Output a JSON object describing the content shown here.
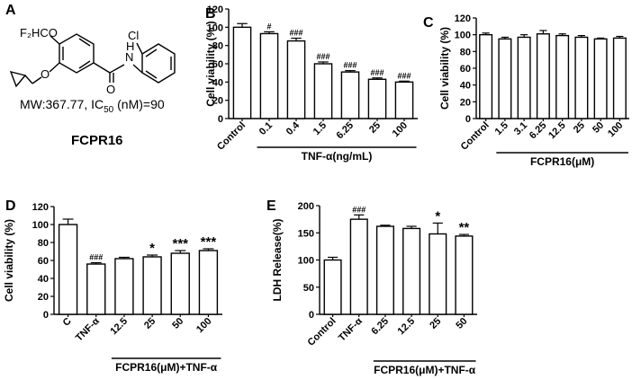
{
  "compound": {
    "panel_label": "A",
    "atom_labels": {
      "f2hco": "F₂HCO",
      "nh_n": "N",
      "nh_h": "H",
      "cl": "Cl",
      "o_ketone": "O",
      "o_ether": "O"
    },
    "mw_text": "MW:367.77, IC",
    "mw_sub": "50",
    "mw_tail": " (nM)=90",
    "name": "FCPR16"
  },
  "chart_data": [
    {
      "panel": "B",
      "type": "bar",
      "ylabel": "Cell viability (% )",
      "ylim": [
        0,
        120
      ],
      "yticks": [
        0,
        20,
        40,
        60,
        80,
        100,
        120
      ],
      "categories": [
        "Control",
        "0.1",
        "0.4",
        "1.5",
        "6.25",
        "25",
        "100"
      ],
      "values": [
        100,
        93,
        85,
        60,
        51,
        43,
        40
      ],
      "errors": [
        4,
        2,
        3,
        2,
        1.5,
        1.5,
        1
      ],
      "annotations": [
        "",
        "#",
        "###",
        "###",
        "###",
        "###",
        "###"
      ],
      "group_label": "TNF-α(ng/mL)",
      "group_span": [
        1,
        6
      ]
    },
    {
      "panel": "C",
      "type": "bar",
      "ylabel": "Cell viability (%)",
      "ylim": [
        0,
        120
      ],
      "yticks": [
        0,
        20,
        40,
        60,
        80,
        100,
        120
      ],
      "categories": [
        "Control",
        "1.5",
        "3.1",
        "6.25",
        "12.5",
        "25",
        "50",
        "100"
      ],
      "values": [
        100,
        95,
        97,
        101,
        99,
        97,
        95,
        96
      ],
      "errors": [
        2,
        2,
        3,
        4,
        2,
        2,
        1,
        2
      ],
      "annotations": [
        "",
        "",
        "",
        "",
        "",
        "",
        "",
        ""
      ],
      "group_label": "FCPR16(μM)",
      "group_span": [
        1,
        7
      ]
    },
    {
      "panel": "D",
      "type": "bar",
      "ylabel": "Cell viability (%)",
      "ylim": [
        0,
        120
      ],
      "yticks": [
        0,
        20,
        40,
        60,
        80,
        100,
        120
      ],
      "categories": [
        "C",
        "TNF-α",
        "12.5",
        "25",
        "50",
        "100"
      ],
      "values": [
        100,
        56,
        62,
        64,
        68,
        71
      ],
      "errors": [
        6,
        1.5,
        1.5,
        2,
        3,
        2
      ],
      "annotations": [
        "",
        "###",
        "",
        "*",
        "***",
        "***"
      ],
      "group_label": "FCPR16(μM)+TNF-α",
      "group_span": [
        2,
        5
      ]
    },
    {
      "panel": "E",
      "type": "bar",
      "ylabel": "LDH Release(%)",
      "ylim": [
        0,
        200
      ],
      "yticks": [
        0,
        50,
        100,
        150,
        200
      ],
      "categories": [
        "Control",
        "TNF-α",
        "6.25",
        "12.5",
        "25",
        "50"
      ],
      "values": [
        100,
        175,
        162,
        158,
        148,
        144
      ],
      "errors": [
        5,
        8,
        2,
        4,
        20,
        3
      ],
      "annotations": [
        "",
        "###",
        "",
        "",
        "*",
        "**"
      ],
      "group_label": "FCPR16(μM)+TNF-α",
      "group_span": [
        2,
        5
      ]
    }
  ]
}
